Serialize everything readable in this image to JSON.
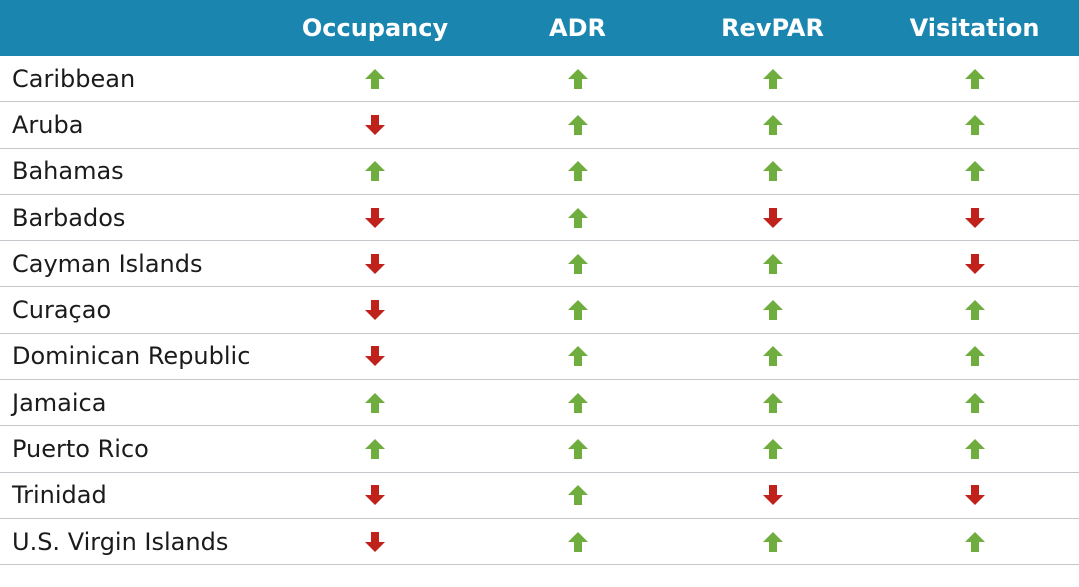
{
  "colors": {
    "header_bg": "#1a86b0",
    "header_text": "#ffffff",
    "up": "#6fae3e",
    "down": "#c0211a",
    "row_border": "#c3c7cc"
  },
  "table": {
    "headers": [
      "",
      "Occupancy",
      "ADR",
      "RevPAR",
      "Visitation"
    ],
    "rows": [
      {
        "region": "Caribbean",
        "values": [
          "up",
          "up",
          "up",
          "up"
        ]
      },
      {
        "region": "Aruba",
        "values": [
          "down",
          "up",
          "up",
          "up"
        ]
      },
      {
        "region": "Bahamas",
        "values": [
          "up",
          "up",
          "up",
          "up"
        ]
      },
      {
        "region": "Barbados",
        "values": [
          "down",
          "up",
          "down",
          "down"
        ]
      },
      {
        "region": "Cayman Islands",
        "values": [
          "down",
          "up",
          "up",
          "down"
        ]
      },
      {
        "region": "Curaçao",
        "values": [
          "down",
          "up",
          "up",
          "up"
        ]
      },
      {
        "region": "Dominican Republic",
        "values": [
          "down",
          "up",
          "up",
          "up"
        ]
      },
      {
        "region": "Jamaica",
        "values": [
          "up",
          "up",
          "up",
          "up"
        ]
      },
      {
        "region": "Puerto Rico",
        "values": [
          "up",
          "up",
          "up",
          "up"
        ]
      },
      {
        "region": "Trinidad",
        "values": [
          "down",
          "up",
          "down",
          "down"
        ]
      },
      {
        "region": "U.S. Virgin Islands",
        "values": [
          "down",
          "up",
          "up",
          "up"
        ]
      }
    ]
  }
}
